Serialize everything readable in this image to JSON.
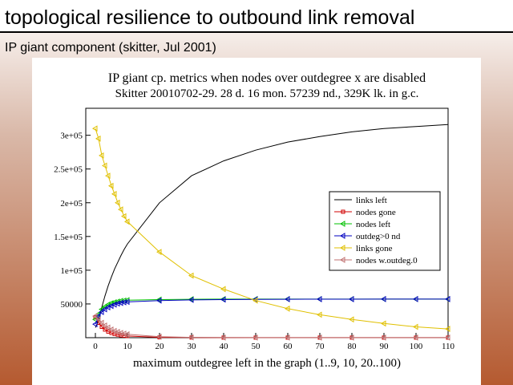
{
  "slide": {
    "title": "topological resilience to outbound link removal",
    "subtitle": "IP giant component (skitter, Jul 2001)"
  },
  "chart_data": {
    "type": "line",
    "title": "IP giant cp. metrics when nodes over outdegree x are disabled",
    "subtitle": "Skitter 20010702-29. 28 d. 16 mon. 57239 nd., 329K lk. in g.c.",
    "x_label": "maximum outdegree left in the graph (1..9, 10, 20..100)",
    "x": [
      0,
      1,
      2,
      3,
      4,
      5,
      6,
      7,
      8,
      9,
      10,
      20,
      30,
      40,
      50,
      60,
      70,
      80,
      90,
      100,
      110
    ],
    "xlim": [
      -3,
      110
    ],
    "xticks": [
      0,
      10,
      20,
      30,
      40,
      50,
      60,
      70,
      80,
      90,
      100,
      110
    ],
    "ylim": [
      0,
      340000
    ],
    "yticks": [
      50000,
      {
        "value": 100000,
        "label": "1e+05"
      },
      {
        "value": 150000,
        "label": "1.5e+05"
      },
      {
        "value": 200000,
        "label": "2e+05"
      },
      {
        "value": 250000,
        "label": "2.5e+05"
      },
      {
        "value": 300000,
        "label": "3e+05"
      }
    ],
    "legend": "center right",
    "series": [
      {
        "name": "links left",
        "color": "#000000",
        "marker": "none",
        "values": [
          15000,
          25000,
          45000,
          62000,
          77000,
          90000,
          102000,
          112000,
          122000,
          131000,
          139000,
          200000,
          240000,
          262000,
          278000,
          290000,
          298000,
          305000,
          310000,
          313000,
          316000
        ]
      },
      {
        "name": "nodes gone",
        "color": "#d00000",
        "marker": "square",
        "values": [
          30000,
          22000,
          16000,
          12000,
          9000,
          7000,
          5500,
          4500,
          3500,
          3000,
          2500,
          500,
          200,
          100,
          100,
          100,
          100,
          100,
          100,
          100,
          100
        ]
      },
      {
        "name": "nodes left",
        "color": "#00c000",
        "marker": "triangle",
        "values": [
          27000,
          35000,
          42000,
          46000,
          49000,
          51000,
          52500,
          53500,
          54500,
          55000,
          55500,
          56500,
          57000,
          57200,
          57239,
          57239,
          57239,
          57239,
          57239,
          57239,
          57239
        ]
      },
      {
        "name": "outdeg>0 nd",
        "color": "#0000c0",
        "marker": "triangle",
        "values": [
          20000,
          32000,
          38000,
          42000,
          45000,
          47000,
          49000,
          50500,
          51500,
          52500,
          53000,
          55000,
          56000,
          56500,
          56800,
          57000,
          57100,
          57100,
          57200,
          57200,
          57200
        ]
      },
      {
        "name": "links gone",
        "color": "#e0c000",
        "marker": "triangle",
        "values": [
          310000,
          295000,
          270000,
          255000,
          240000,
          225000,
          213000,
          200000,
          190000,
          180000,
          172000,
          127000,
          92000,
          72000,
          55000,
          43000,
          34000,
          27000,
          21000,
          16000,
          13000
        ]
      },
      {
        "name": "nodes w.outdeg.0",
        "color": "#c07070",
        "marker": "triangle",
        "values": [
          32000,
          27000,
          22000,
          18000,
          15000,
          12000,
          10000,
          8500,
          7000,
          6000,
          5000,
          1500,
          500,
          200,
          100,
          100,
          100,
          100,
          100,
          100,
          100
        ]
      }
    ]
  }
}
